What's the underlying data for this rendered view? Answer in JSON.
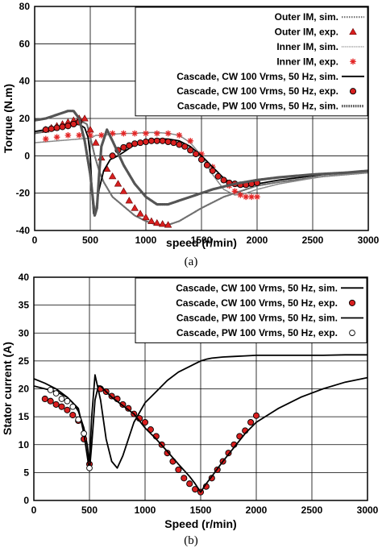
{
  "chart_data": [
    {
      "type": "line",
      "panel_label": "(a)",
      "xlabel": "speed (r/min)",
      "ylabel": "Torque (N.m)",
      "xlim": [
        0,
        3000
      ],
      "ylim": [
        -40,
        80
      ],
      "xticks": [
        0,
        500,
        1000,
        1500,
        2000,
        2500,
        3000
      ],
      "yticks": [
        -40,
        -20,
        0,
        20,
        40,
        60,
        80
      ],
      "grid": true,
      "legend_position": "top-right",
      "series": [
        {
          "name": "Outer IM, sim.",
          "kind": "line",
          "style": "dotted-gray",
          "x": [
            0,
            100,
            200,
            300,
            400,
            470,
            500,
            540,
            580,
            620,
            700,
            800,
            900,
            1000,
            1100,
            1200,
            1300,
            1500,
            1700,
            1900,
            2000,
            2200,
            2400,
            2600,
            2800,
            3000
          ],
          "y": [
            12,
            13,
            15,
            17,
            19,
            17,
            10,
            0,
            -8,
            -14,
            -22,
            -27,
            -32,
            -35,
            -37,
            -37,
            -35,
            -28,
            -22,
            -18,
            -16,
            -14,
            -12.5,
            -11,
            -10,
            -9
          ]
        },
        {
          "name": "Outer IM, exp.",
          "kind": "marker",
          "style": "triangle-red",
          "x": [
            100,
            150,
            200,
            250,
            300,
            350,
            400,
            450,
            500,
            550,
            600,
            650,
            700,
            750,
            800,
            850,
            900,
            950,
            1000,
            1050,
            1100,
            1150,
            1200
          ],
          "y": [
            14,
            15,
            16,
            17,
            18,
            19,
            20,
            20,
            14,
            7,
            -1,
            -7,
            -11,
            -15,
            -19,
            -24,
            -28,
            -31,
            -33,
            -35,
            -36,
            -36.5,
            -37
          ]
        },
        {
          "name": "Inner IM, sim.",
          "kind": "line",
          "style": "dotted-gray-fine",
          "x": [
            0,
            200,
            400,
            500,
            520,
            550,
            600,
            700,
            800,
            900,
            1000,
            1100,
            1200,
            1300,
            1400,
            1500,
            1600,
            1700,
            1800,
            1900,
            2000,
            2200,
            2400,
            2600,
            2800,
            3000
          ],
          "y": [
            7,
            8,
            9,
            9.5,
            10,
            11,
            11,
            11.5,
            12,
            12,
            12.5,
            12.5,
            12,
            11,
            7,
            0,
            -10,
            -18,
            -21,
            -20,
            -18,
            -15,
            -13,
            -11,
            -10,
            -9
          ]
        },
        {
          "name": "Inner IM, exp.",
          "kind": "marker",
          "style": "asterisk-red",
          "x": [
            100,
            200,
            300,
            400,
            500,
            600,
            700,
            800,
            900,
            1000,
            1100,
            1200,
            1300,
            1400,
            1500,
            1600,
            1700,
            1750,
            1800,
            1850,
            1900,
            1950,
            2000
          ],
          "y": [
            9,
            10,
            11,
            11,
            11,
            11,
            12,
            12,
            12,
            12,
            12,
            12,
            11,
            8,
            1,
            -6,
            -13,
            -16,
            -19,
            -21,
            -22,
            -22,
            -22
          ]
        },
        {
          "name": "Cascade, CW 100 Vrms, 50 Hz, sim.",
          "kind": "line",
          "style": "solid-black",
          "x": [
            0,
            200,
            400,
            450,
            480,
            500,
            510,
            520,
            530,
            550,
            580,
            620,
            680,
            750,
            800,
            850,
            900,
            1000,
            1100,
            1200,
            1300,
            1400,
            1500,
            1600,
            1700,
            1800,
            1900,
            2000,
            2200,
            2400,
            2600,
            2800,
            3000
          ],
          "y": [
            13,
            15,
            17,
            15,
            10,
            0,
            -12,
            -24,
            -31,
            -29,
            -18,
            -8,
            -2,
            0,
            2,
            4,
            6,
            8,
            9,
            9,
            8,
            5,
            0,
            -6,
            -12,
            -16,
            -16.5,
            -15,
            -13,
            -11.5,
            -10,
            -9,
            -8
          ]
        },
        {
          "name": "Cascade, CW 100 Vrms, 50 Hz, exp.",
          "kind": "marker",
          "style": "circle-red",
          "x": [
            100,
            150,
            200,
            250,
            300,
            350,
            400,
            700,
            750,
            800,
            850,
            900,
            950,
            1000,
            1050,
            1100,
            1150,
            1200,
            1250,
            1300,
            1350,
            1400,
            1450,
            1500,
            1550,
            1600,
            1650,
            1700,
            1750,
            1800,
            1850,
            1900,
            1950,
            2000
          ],
          "y": [
            14,
            14.5,
            15,
            15.5,
            16,
            17,
            18,
            0,
            3,
            4.5,
            5.5,
            6.5,
            7,
            7.5,
            8,
            8,
            8,
            7.5,
            7,
            6,
            5,
            3,
            1,
            -2,
            -5,
            -8,
            -11,
            -13,
            -14.5,
            -15,
            -15.5,
            -15.5,
            -15,
            -14.5
          ]
        },
        {
          "name": "Cascade, PW 100 Vrms, 50 Hz, sim.",
          "kind": "line",
          "style": "dotted-black-thick",
          "x": [
            0,
            100,
            200,
            300,
            350,
            400,
            450,
            500,
            540,
            560,
            580,
            600,
            650,
            700,
            800,
            900,
            1000,
            1100,
            1200,
            1300,
            1400,
            1600,
            1800,
            2000,
            2200,
            2500,
            2800,
            3000
          ],
          "y": [
            19,
            20,
            22,
            24,
            24,
            20,
            8,
            -10,
            -32,
            -28,
            -10,
            5,
            14,
            8,
            -5,
            -15,
            -22,
            -26,
            -26,
            -24,
            -22,
            -18,
            -15,
            -13,
            -11.5,
            -10,
            -9,
            -8
          ]
        }
      ]
    },
    {
      "type": "line",
      "panel_label": "(b)",
      "xlabel": "Speed (r/min)",
      "ylabel": "Stator current (A)",
      "xlim": [
        0,
        3000
      ],
      "ylim": [
        0,
        40
      ],
      "xticks": [
        0,
        500,
        1000,
        1500,
        2000,
        2500,
        3000
      ],
      "yticks": [
        0,
        5,
        10,
        15,
        20,
        25,
        30,
        35,
        40
      ],
      "grid": true,
      "legend_position": "top-right",
      "series": [
        {
          "name": "Cascade, CW 100 Vrms, 50 Hz, sim.",
          "kind": "line",
          "style": "solid-black",
          "x": [
            0,
            100,
            200,
            300,
            350,
            400,
            450,
            480,
            500,
            520,
            550,
            600,
            650,
            700,
            750,
            800,
            850,
            900,
            1000,
            1100,
            1200,
            1300,
            1400,
            1450,
            1500,
            1550,
            1600,
            1700,
            1800,
            1900,
            2000,
            2200,
            2400,
            2600,
            2800,
            3000
          ],
          "y": [
            21.8,
            21,
            20,
            18.5,
            17.5,
            16,
            13,
            10,
            6.5,
            15,
            22.5,
            18,
            11,
            7,
            5.8,
            8,
            11,
            14,
            17.5,
            19.5,
            21.5,
            23,
            24,
            24.5,
            25,
            25.3,
            25.5,
            25.7,
            25.8,
            25.9,
            26,
            26,
            26,
            26,
            26.1,
            26.1
          ]
        },
        {
          "name": "Cascade, CW 100 Vrms, 50 Hz, exp.",
          "kind": "marker",
          "style": "circle-red",
          "x": [
            100,
            150,
            200,
            250,
            300,
            350,
            400,
            450,
            500,
            600,
            650,
            700,
            750,
            800,
            850,
            900,
            950,
            1000,
            1050,
            1100,
            1150,
            1200,
            1250,
            1300,
            1350,
            1400,
            1450,
            1500,
            1550,
            1600,
            1650,
            1700,
            1750,
            1800,
            1850,
            1900,
            1950,
            2000
          ],
          "y": [
            18.2,
            17.8,
            17.2,
            16.8,
            16.2,
            15.3,
            14.3,
            11,
            6.5,
            20,
            19.5,
            18.7,
            18.2,
            17.2,
            16.5,
            15.5,
            14.7,
            14,
            12.7,
            11.5,
            10,
            8.5,
            7,
            5.5,
            4,
            3,
            2,
            1.5,
            2.5,
            4,
            5.5,
            7,
            8.5,
            10,
            11.5,
            12.5,
            14,
            15.2
          ]
        },
        {
          "name": "Cascade, PW 100 Vrms, 50 Hz, sim.",
          "kind": "line",
          "style": "solid-black",
          "x": [
            0,
            100,
            200,
            300,
            350,
            400,
            450,
            480,
            500,
            520,
            550,
            580,
            600,
            700,
            800,
            900,
            1000,
            1100,
            1200,
            1300,
            1400,
            1450,
            1500,
            1550,
            1600,
            1700,
            1800,
            1900,
            2000,
            2200,
            2400,
            2600,
            2800,
            3000
          ],
          "y": [
            20.5,
            20,
            19.5,
            18.5,
            17.5,
            16.5,
            12,
            8,
            5.3,
            10,
            18,
            20.5,
            20.5,
            18.5,
            17,
            15.5,
            13,
            11,
            8.8,
            6.5,
            4.3,
            3,
            1.5,
            3,
            4.3,
            7,
            9.5,
            12,
            14,
            16.5,
            18.5,
            20,
            21.2,
            22
          ]
        },
        {
          "name": "Cascade, PW 100 Vrms, 50 Hz, exp.",
          "kind": "marker",
          "style": "circle-open",
          "x": [
            150,
            200,
            250,
            300,
            350,
            400,
            450,
            500
          ],
          "y": [
            19.8,
            19.2,
            18.2,
            17.8,
            16.8,
            14.5,
            12,
            5.8
          ]
        }
      ]
    }
  ]
}
